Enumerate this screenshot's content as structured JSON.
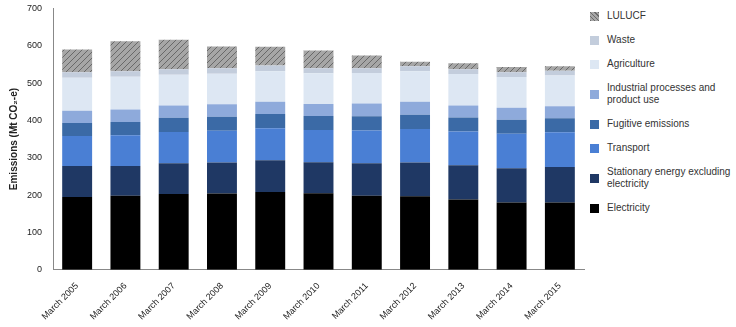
{
  "chart_data": {
    "type": "bar",
    "stacked": true,
    "grid": false,
    "legend": "right",
    "y_label": "Emissions (Mt CO₂-e)",
    "categories": [
      "March 2005",
      "March 2006",
      "March 2007",
      "March 2008",
      "March 2009",
      "March 2010",
      "March 2011",
      "March 2012",
      "March 2013",
      "March 2014",
      "March 2015"
    ],
    "ylim": [
      0,
      700
    ],
    "yticks": [
      0,
      100,
      200,
      300,
      400,
      500,
      600,
      700
    ],
    "series": [
      {
        "name": "Electricity",
        "color": "#000000",
        "values": [
          195,
          198,
          203,
          204,
          208,
          205,
          198,
          197,
          188,
          180,
          180
        ]
      },
      {
        "name": "Stationary energy excluding electricity",
        "color": "#1f3864",
        "values": [
          83,
          80,
          82,
          83,
          85,
          83,
          87,
          90,
          92,
          92,
          95
        ]
      },
      {
        "name": "Transport",
        "color": "#4a7fd4",
        "values": [
          80,
          82,
          84,
          85,
          86,
          86,
          88,
          90,
          90,
          92,
          93
        ]
      },
      {
        "name": "Fugitive emissions",
        "color": "#3b6aa6",
        "values": [
          35,
          36,
          38,
          38,
          38,
          38,
          38,
          38,
          38,
          38,
          38
        ]
      },
      {
        "name": "Industrial processes and product use",
        "color": "#8eaadb",
        "values": [
          33,
          33,
          33,
          33,
          33,
          32,
          34,
          35,
          32,
          32,
          32
        ]
      },
      {
        "name": "Agriculture",
        "color": "#dde7f3",
        "values": [
          88,
          88,
          82,
          82,
          82,
          82,
          82,
          82,
          84,
          82,
          82
        ]
      },
      {
        "name": "Waste",
        "color": "#c3cddc",
        "values": [
          15,
          15,
          15,
          15,
          15,
          14,
          13,
          13,
          13,
          13,
          13
        ]
      },
      {
        "name": "LULUCF",
        "color": "#a6a6a6",
        "values": [
          61,
          80,
          79,
          58,
          50,
          47,
          34,
          12,
          16,
          14,
          12
        ]
      }
    ]
  }
}
